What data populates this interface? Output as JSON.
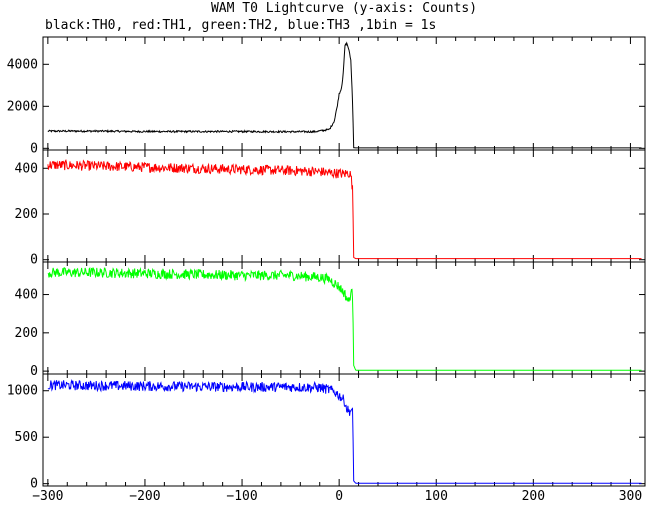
{
  "chart_data": {
    "type": "line",
    "title": "WAM T0 Lightcurve (y-axis: Counts)",
    "subtitle": "black:TH0, red:TH1, green:TH2, blue:TH3 ,1bin = 1s",
    "xlabel": "",
    "ylabel": "",
    "xlim": [
      -305,
      315
    ],
    "x_ticks": [
      -300,
      -200,
      -100,
      0,
      100,
      200,
      300
    ],
    "x_tick_labels": [
      "−300",
      "−200",
      "−100",
      "0",
      "100",
      "200",
      "300"
    ],
    "grid": false,
    "legend": "none",
    "panels": [
      {
        "series": "TH0",
        "color": "#000000",
        "ylim": [
          -80,
          5300
        ],
        "y_ticks": [
          0,
          2000,
          4000
        ],
        "y_tick_labels": [
          "0",
          "2000",
          "4000"
        ],
        "x": [
          -300,
          -250,
          -200,
          -150,
          -100,
          -50,
          -25,
          -10,
          -5,
          -2,
          0,
          2,
          4,
          6,
          8,
          10,
          12,
          14,
          15,
          17,
          20,
          50,
          100,
          200,
          300,
          312
        ],
        "y": [
          820,
          820,
          800,
          800,
          800,
          790,
          790,
          900,
          1300,
          2000,
          2600,
          2800,
          3400,
          4900,
          5000,
          4700,
          4200,
          2000,
          30,
          20,
          20,
          20,
          20,
          20,
          20,
          20
        ]
      },
      {
        "series": "TH1",
        "color": "#ff0000",
        "ylim": [
          -10,
          480
        ],
        "y_ticks": [
          0,
          200,
          400
        ],
        "y_tick_labels": [
          "0",
          "200",
          "400"
        ],
        "x": [
          -300,
          -250,
          -200,
          -150,
          -100,
          -50,
          -20,
          -10,
          0,
          5,
          10,
          12,
          14,
          15,
          17,
          50,
          100,
          200,
          300,
          312
        ],
        "y": [
          415,
          410,
          405,
          400,
          395,
          390,
          385,
          380,
          378,
          375,
          380,
          370,
          300,
          10,
          5,
          5,
          5,
          5,
          5,
          5
        ]
      },
      {
        "series": "TH2",
        "color": "#00ff00",
        "ylim": [
          -15,
          570
        ],
        "y_ticks": [
          0,
          200,
          400
        ],
        "y_tick_labels": [
          "0",
          "200",
          "400"
        ],
        "x": [
          -300,
          -250,
          -200,
          -150,
          -100,
          -50,
          -20,
          -10,
          -5,
          0,
          5,
          8,
          10,
          12,
          14,
          15,
          17,
          50,
          100,
          200,
          300,
          312
        ],
        "y": [
          515,
          515,
          510,
          505,
          500,
          500,
          490,
          480,
          460,
          440,
          410,
          380,
          360,
          410,
          400,
          30,
          5,
          5,
          5,
          5,
          5,
          5
        ]
      },
      {
        "series": "TH3",
        "color": "#0000ff",
        "ylim": [
          -25,
          1180
        ],
        "y_ticks": [
          0,
          500,
          1000
        ],
        "y_tick_labels": [
          "0",
          "500",
          "1000"
        ],
        "x": [
          -300,
          -250,
          -200,
          -150,
          -100,
          -50,
          -20,
          -10,
          -5,
          0,
          3,
          6,
          8,
          10,
          12,
          14,
          15,
          17,
          50,
          100,
          200,
          300,
          312
        ],
        "y": [
          1060,
          1055,
          1050,
          1045,
          1040,
          1040,
          1035,
          1010,
          990,
          950,
          920,
          880,
          800,
          780,
          790,
          760,
          30,
          5,
          5,
          5,
          5,
          5,
          5
        ]
      }
    ]
  }
}
